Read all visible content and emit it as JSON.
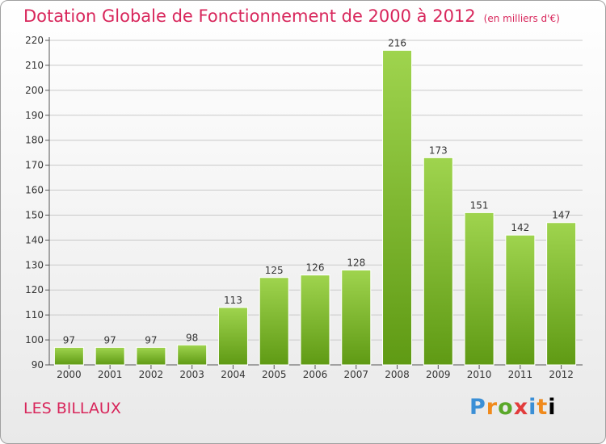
{
  "header": {
    "title": "Dotation Globale de Fonctionnement de 2000 à 2012",
    "unit": "(en milliers d'€)"
  },
  "footer": {
    "commune": "LES BILLAUX",
    "logo_letters": [
      "P",
      "r",
      "o",
      "x",
      "i",
      "t",
      "i"
    ]
  },
  "colors": {
    "title": "#d8265b",
    "bar_top": "#9fd44e",
    "bar_bottom": "#5f9a14"
  },
  "chart_data": {
    "type": "bar",
    "title": "Dotation Globale de Fonctionnement de 2000 à 2012",
    "categories": [
      "2000",
      "2001",
      "2002",
      "2003",
      "2004",
      "2005",
      "2006",
      "2007",
      "2008",
      "2009",
      "2010",
      "2011",
      "2012"
    ],
    "values": [
      97,
      97,
      97,
      98,
      113,
      125,
      126,
      128,
      216,
      173,
      151,
      142,
      147
    ],
    "ylim": [
      90,
      220
    ],
    "yticks": [
      90,
      100,
      110,
      120,
      130,
      140,
      150,
      160,
      170,
      180,
      190,
      200,
      210,
      220
    ],
    "grid": true,
    "data_labels": true
  }
}
